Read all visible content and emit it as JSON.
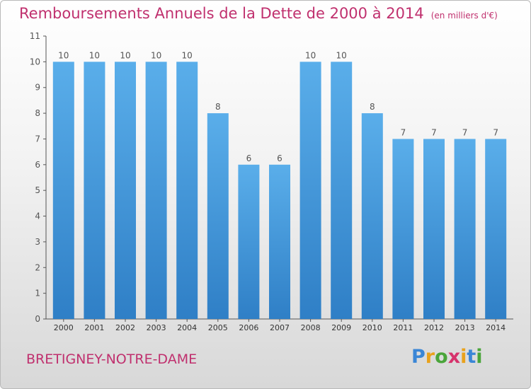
{
  "chart_data": {
    "type": "bar",
    "title": "Remboursements Annuels de la Dette de 2000 à 2014",
    "subtitle": "(en milliers d'€)",
    "categories": [
      "2000",
      "2001",
      "2002",
      "2003",
      "2004",
      "2005",
      "2006",
      "2007",
      "2008",
      "2009",
      "2010",
      "2011",
      "2012",
      "2013",
      "2014"
    ],
    "values": [
      10,
      10,
      10,
      10,
      10,
      8,
      6,
      6,
      10,
      10,
      8,
      7,
      7,
      7,
      7
    ],
    "data_labels": [
      "10",
      "10",
      "10",
      "10",
      "10",
      "8",
      "6",
      "6",
      "10",
      "10",
      "8",
      "7",
      "7",
      "7",
      "7"
    ],
    "yticks": [
      "0",
      "1",
      "2",
      "3",
      "4",
      "5",
      "6",
      "7",
      "8",
      "9",
      "10",
      "11"
    ],
    "ylim": [
      0,
      11
    ],
    "grid": false,
    "bar_color": "#4a9fe0"
  },
  "commune": "BRETIGNEY-NOTRE-DAME",
  "logo": {
    "letters": [
      "P",
      "r",
      "o",
      "x",
      "i",
      "t",
      "i"
    ],
    "colors": [
      "#3a86d6",
      "#e9a21c",
      "#4aa53a",
      "#d6336c",
      "#e9a21c",
      "#3a86d6",
      "#4aa53a"
    ]
  }
}
